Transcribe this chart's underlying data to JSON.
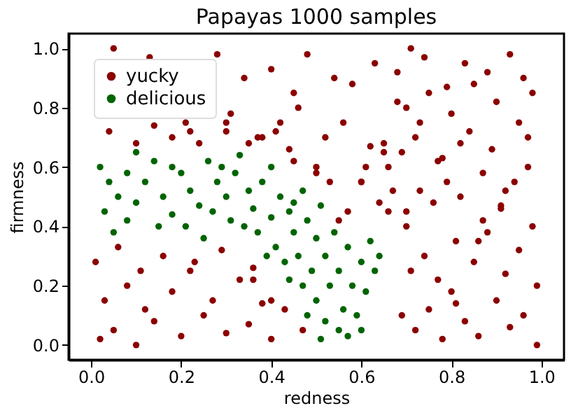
{
  "chart_data": {
    "type": "scatter",
    "title": "Papayas 1000 samples",
    "xlabel": "redness",
    "ylabel": "firmness",
    "xlim": [
      -0.05,
      1.05
    ],
    "ylim": [
      -0.05,
      1.05
    ],
    "xticks": [
      {
        "value": 0,
        "label": "0.0"
      },
      0.2,
      0.4,
      0.6,
      0.8,
      {
        "value": 1,
        "label": "1.0"
      }
    ],
    "yticks": [
      {
        "value": 0,
        "label": "0.0"
      },
      0.2,
      0.4,
      0.6,
      0.8,
      {
        "value": 1,
        "label": "1.0"
      }
    ],
    "grid": false,
    "legend": "top left",
    "marker": "circle",
    "series": [
      {
        "name": "yucky",
        "color": "#8b0000",
        "x": [
          0.02,
          0.05,
          0.1,
          0.14,
          0.2,
          0.25,
          0.3,
          0.35,
          0.4,
          0.03,
          0.08,
          0.12,
          0.18,
          0.22,
          0.27,
          0.33,
          0.38,
          0.01,
          0.06,
          0.11,
          0.16,
          0.23,
          0.29,
          0.36,
          0.04,
          0.21,
          0.31,
          0.13,
          0.24,
          0.3,
          0.37,
          0.42,
          0.45,
          0.05,
          0.1,
          0.28,
          0.34,
          0.4,
          0.46,
          0.52,
          0.58,
          0.63,
          0.44,
          0.5,
          0.56,
          0.62,
          0.68,
          0.48,
          0.54,
          0.6,
          0.66,
          0.7,
          0.72,
          0.75,
          0.78,
          0.8,
          0.83,
          0.86,
          0.9,
          0.93,
          0.96,
          0.99,
          0.71,
          0.74,
          0.77,
          0.81,
          0.85,
          0.88,
          0.92,
          0.95,
          0.98,
          0.7,
          0.73,
          0.76,
          0.79,
          0.82,
          0.87,
          0.91,
          0.94,
          0.97,
          0.69,
          0.72,
          0.78,
          0.84,
          0.89,
          0.95,
          0.7,
          0.75,
          0.8,
          0.85,
          0.9,
          0.96,
          0.68,
          0.74,
          0.79,
          0.83,
          0.88,
          0.93,
          0.98,
          0.71,
          0.77,
          0.82,
          0.87,
          0.92,
          0.97,
          0.73,
          0.81,
          0.86,
          0.91,
          0.99,
          0.66,
          0.65,
          0.67,
          0.64,
          0.6,
          0.55,
          0.5,
          0.45,
          0.41,
          0.38,
          0.35,
          0.3,
          0.22,
          0.18,
          0.14,
          0.43,
          0.47,
          0.53,
          0.57,
          0.61,
          0.65,
          0.69,
          0.4,
          0.36
        ],
        "values": [
          0.02,
          0.05,
          0.0,
          0.08,
          0.03,
          0.1,
          0.04,
          0.07,
          0.02,
          0.15,
          0.2,
          0.12,
          0.18,
          0.25,
          0.15,
          0.22,
          0.14,
          0.28,
          0.33,
          0.25,
          0.3,
          0.28,
          0.32,
          0.26,
          0.72,
          0.75,
          0.78,
          0.97,
          0.68,
          0.72,
          0.7,
          0.75,
          0.85,
          1.0,
          0.68,
          0.98,
          0.9,
          0.93,
          0.8,
          0.7,
          0.88,
          0.95,
          0.66,
          0.6,
          0.75,
          0.67,
          0.82,
          0.98,
          0.9,
          0.55,
          0.6,
          0.4,
          0.05,
          0.12,
          0.02,
          0.18,
          0.08,
          0.03,
          0.15,
          0.06,
          0.1,
          0.0,
          0.25,
          0.3,
          0.22,
          0.35,
          0.28,
          0.38,
          0.24,
          0.32,
          0.4,
          0.45,
          0.52,
          0.48,
          0.55,
          0.5,
          0.58,
          0.46,
          0.55,
          0.6,
          0.65,
          0.7,
          0.63,
          0.72,
          0.66,
          0.75,
          0.8,
          0.85,
          0.78,
          0.88,
          0.82,
          0.9,
          0.92,
          0.97,
          0.87,
          0.95,
          0.92,
          0.98,
          0.85,
          1.0,
          0.62,
          0.68,
          0.42,
          0.52,
          0.7,
          0.75,
          0.14,
          0.35,
          0.47,
          0.2,
          0.45,
          0.65,
          0.52,
          0.48,
          0.55,
          0.42,
          0.58,
          0.62,
          0.72,
          0.7,
          0.68,
          0.75,
          0.72,
          0.7,
          0.74,
          0.12,
          0.05,
          0.55,
          0.45,
          0.6,
          0.68,
          0.1,
          0.15,
          0.22
        ]
      },
      {
        "name": "delicious",
        "color": "#006400",
        "x": [
          0.02,
          0.04,
          0.06,
          0.03,
          0.08,
          0.05,
          0.1,
          0.12,
          0.1,
          0.14,
          0.16,
          0.18,
          0.15,
          0.2,
          0.22,
          0.24,
          0.21,
          0.26,
          0.28,
          0.3,
          0.27,
          0.32,
          0.33,
          0.35,
          0.31,
          0.36,
          0.38,
          0.4,
          0.37,
          0.4,
          0.42,
          0.44,
          0.41,
          0.45,
          0.43,
          0.47,
          0.46,
          0.48,
          0.5,
          0.49,
          0.51,
          0.52,
          0.53,
          0.5,
          0.54,
          0.55,
          0.56,
          0.52,
          0.57,
          0.58,
          0.55,
          0.59,
          0.6,
          0.61,
          0.62,
          0.57,
          0.63,
          0.47,
          0.45,
          0.25,
          0.18,
          0.08,
          0.29,
          0.34,
          0.39,
          0.44,
          0.51,
          0.6,
          0.64,
          0.48
        ],
        "values": [
          0.6,
          0.55,
          0.5,
          0.45,
          0.42,
          0.38,
          0.48,
          0.55,
          0.65,
          0.62,
          0.5,
          0.44,
          0.4,
          0.58,
          0.52,
          0.47,
          0.4,
          0.62,
          0.55,
          0.5,
          0.45,
          0.58,
          0.64,
          0.52,
          0.42,
          0.46,
          0.55,
          0.6,
          0.38,
          0.43,
          0.5,
          0.45,
          0.33,
          0.38,
          0.28,
          0.52,
          0.3,
          0.42,
          0.36,
          0.25,
          0.47,
          0.3,
          0.2,
          0.15,
          0.38,
          0.25,
          0.12,
          0.08,
          0.33,
          0.2,
          0.05,
          0.1,
          0.28,
          0.18,
          0.35,
          0.03,
          0.25,
          0.2,
          0.48,
          0.36,
          0.6,
          0.58,
          0.6,
          0.4,
          0.3,
          0.22,
          0.02,
          0.05,
          0.3,
          0.1
        ]
      }
    ]
  }
}
